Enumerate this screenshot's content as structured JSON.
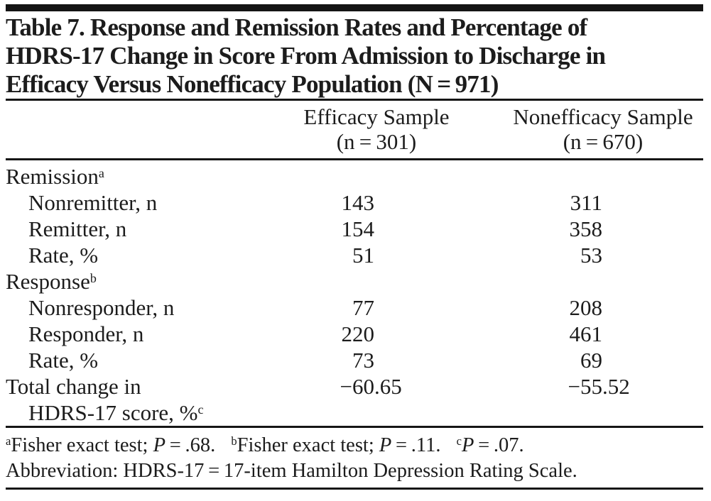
{
  "title_lines": [
    "Table 7. Response and Remission Rates and Percentage of",
    "HDRS-17 Change in Score From Admission to Discharge in",
    "Efficacy Versus Nonefficacy Population (N = 971)"
  ],
  "columns": [
    {
      "name": "Efficacy Sample",
      "n": "(n = 301)"
    },
    {
      "name": "Nonefficacy Sample",
      "n": "(n = 670)"
    }
  ],
  "rows": [
    {
      "label": "Remission",
      "sup": "a",
      "indent": false,
      "values": [
        "",
        ""
      ]
    },
    {
      "label": "Nonremitter, n",
      "sup": "",
      "indent": true,
      "values": [
        "143",
        "311"
      ]
    },
    {
      "label": "Remitter, n",
      "sup": "",
      "indent": true,
      "values": [
        "154",
        "358"
      ]
    },
    {
      "label": "Rate, %",
      "sup": "",
      "indent": true,
      "values": [
        "51",
        "53"
      ]
    },
    {
      "label": "Response",
      "sup": "b",
      "indent": false,
      "values": [
        "",
        ""
      ]
    },
    {
      "label": "Nonresponder, n",
      "sup": "",
      "indent": true,
      "values": [
        "77",
        "208"
      ]
    },
    {
      "label": "Responder, n",
      "sup": "",
      "indent": true,
      "values": [
        "220",
        "461"
      ]
    },
    {
      "label": "Rate, %",
      "sup": "",
      "indent": true,
      "values": [
        "73",
        "69"
      ]
    },
    {
      "label": "Total change in",
      "sup": "",
      "indent": false,
      "values": [
        "−60.65",
        "−55.52"
      ]
    },
    {
      "label": "HDRS-17 score, %",
      "sup": "c",
      "indent": true,
      "values": [
        "",
        ""
      ]
    }
  ],
  "footnotes": {
    "a": {
      "sup": "a",
      "text": "Fisher exact test; ",
      "p": "P",
      "rest": " = .68."
    },
    "b": {
      "sup": "b",
      "text": "Fisher exact test; ",
      "p": "P",
      "rest": " = .11."
    },
    "c": {
      "sup": "c",
      "text": "",
      "p": "P",
      "rest": " = .07."
    }
  },
  "abbreviation": "Abbreviation: HDRS-17 = 17-item Hamilton Depression Rating Scale.",
  "colors": {
    "text": "#1c1c1c",
    "rules": "#161616",
    "background": "#ffffff"
  }
}
